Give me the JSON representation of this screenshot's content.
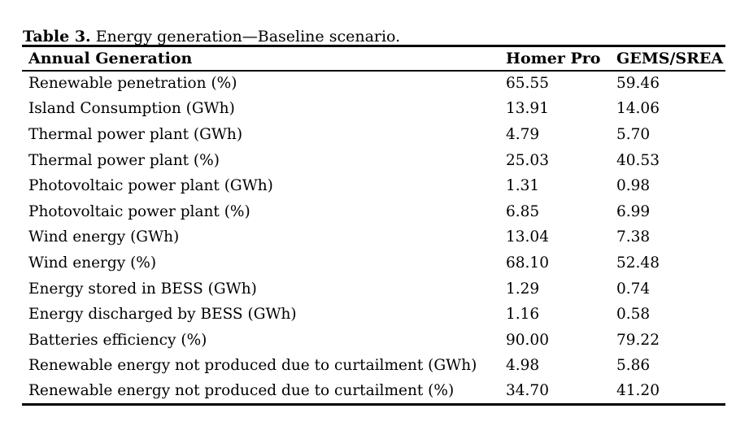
{
  "caption": {
    "label": "Table 3.",
    "text": "Energy generation—Baseline scenario."
  },
  "table": {
    "columns": [
      "Annual Generation",
      "Homer Pro",
      "GEMS/SREA"
    ],
    "rows": [
      {
        "metric": "Renewable penetration (%)",
        "homer_pro": "65.55",
        "gems_srea": "59.46"
      },
      {
        "metric": "Island Consumption (GWh)",
        "homer_pro": "13.91",
        "gems_srea": "14.06"
      },
      {
        "metric": "Thermal power plant (GWh)",
        "homer_pro": "4.79",
        "gems_srea": "5.70"
      },
      {
        "metric": "Thermal power plant (%)",
        "homer_pro": "25.03",
        "gems_srea": "40.53"
      },
      {
        "metric": "Photovoltaic power plant (GWh)",
        "homer_pro": "1.31",
        "gems_srea": "0.98"
      },
      {
        "metric": "Photovoltaic power plant (%)",
        "homer_pro": "6.85",
        "gems_srea": "6.99"
      },
      {
        "metric": "Wind energy (GWh)",
        "homer_pro": "13.04",
        "gems_srea": "7.38"
      },
      {
        "metric": "Wind energy (%)",
        "homer_pro": "68.10",
        "gems_srea": "52.48"
      },
      {
        "metric": "Energy stored in BESS (GWh)",
        "homer_pro": "1.29",
        "gems_srea": "0.74"
      },
      {
        "metric": "Energy discharged by BESS (GWh)",
        "homer_pro": "1.16",
        "gems_srea": "0.58"
      },
      {
        "metric": "Batteries efficiency (%)",
        "homer_pro": "90.00",
        "gems_srea": "79.22"
      },
      {
        "metric": "Renewable energy not produced due to curtailment (GWh)",
        "homer_pro": "4.98",
        "gems_srea": "5.86"
      },
      {
        "metric": "Renewable energy not produced due to curtailment (%)",
        "homer_pro": "34.70",
        "gems_srea": "41.20"
      }
    ]
  },
  "colors": {
    "text": "#000000",
    "rule": "#000000",
    "background": "#ffffff"
  },
  "chart_data": {
    "type": "table",
    "title": "Table 3. Energy generation—Baseline scenario.",
    "columns": [
      "Annual Generation",
      "Homer Pro",
      "GEMS/SREA"
    ],
    "rows": [
      [
        "Renewable penetration (%)",
        65.55,
        59.46
      ],
      [
        "Island Consumption (GWh)",
        13.91,
        14.06
      ],
      [
        "Thermal power plant (GWh)",
        4.79,
        5.7
      ],
      [
        "Thermal power plant (%)",
        25.03,
        40.53
      ],
      [
        "Photovoltaic power plant (GWh)",
        1.31,
        0.98
      ],
      [
        "Photovoltaic power plant (%)",
        6.85,
        6.99
      ],
      [
        "Wind energy (GWh)",
        13.04,
        7.38
      ],
      [
        "Wind energy (%)",
        68.1,
        52.48
      ],
      [
        "Energy stored in BESS (GWh)",
        1.29,
        0.74
      ],
      [
        "Energy discharged by BESS (GWh)",
        1.16,
        0.58
      ],
      [
        "Batteries efficiency (%)",
        90.0,
        79.22
      ],
      [
        "Renewable energy not produced due to curtailment (GWh)",
        4.98,
        5.86
      ],
      [
        "Renewable energy not produced due to curtailment (%)",
        34.7,
        41.2
      ]
    ]
  }
}
